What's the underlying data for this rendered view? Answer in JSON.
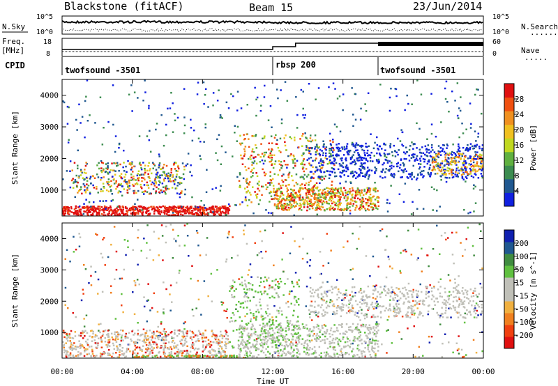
{
  "header": {
    "station": "Blackstone (fitACF)",
    "beam": "Beam 15",
    "date": "23/Jun/2014"
  },
  "noise_panel": {
    "left_label": "N.Sky",
    "right_label": "N.Search",
    "right_label_dots": "........",
    "y_ticks_left": [
      "10^5",
      "10^0"
    ],
    "y_ticks_right": [
      "10^5",
      "10^0"
    ]
  },
  "freq_panel": {
    "label_line1": "Freq.",
    "label_line2": "[MHz]",
    "y_ticks_left": [
      "18",
      "8"
    ],
    "y_ticks_right": [
      "60",
      "0"
    ],
    "right_label": "Nave",
    "right_label_dots": "....."
  },
  "cpid_panel": {
    "label": "CPID",
    "segments": [
      {
        "name": "twofsound -3501",
        "start_hour": 0
      },
      {
        "name": "rbsp 200",
        "start_hour": 12.0
      },
      {
        "name": "twofsound -3501",
        "start_hour": 18.0
      }
    ]
  },
  "colors": {
    "power_scale": [
      "#1020e0",
      "#205890",
      "#3c8c50",
      "#60b040",
      "#c0d820",
      "#f0c020",
      "#f09020",
      "#f05010",
      "#e01010"
    ],
    "velocity_scale": [
      "#e01010",
      "#f04010",
      "#f08020",
      "#f0b040",
      "#c0c0b8",
      "#c0c0b8",
      "#60c040",
      "#408c40",
      "#205890",
      "#1020b0"
    ]
  },
  "chart_data": [
    {
      "type": "heatmap",
      "title": "",
      "ylabel": "Slant Range [km]",
      "xlabel": "",
      "x_ticks": [
        "00:00",
        "04:00",
        "08:00",
        "12:00",
        "16:00",
        "20:00",
        "00:00"
      ],
      "y_ticks": [
        1000,
        2000,
        3000,
        4000
      ],
      "xlim_hours": [
        0,
        24
      ],
      "ylim_km": [
        180,
        4500
      ],
      "colorbar": {
        "label": "Power [dB]",
        "ticks": [
          4,
          8,
          12,
          16,
          20,
          24,
          28
        ]
      }
    },
    {
      "type": "heatmap",
      "title": "",
      "ylabel": "Slant Range [km]",
      "xlabel": "Time UT",
      "x_ticks": [
        "00:00",
        "04:00",
        "08:00",
        "12:00",
        "16:00",
        "20:00",
        "00:00"
      ],
      "y_ticks": [
        1000,
        2000,
        3000,
        4000
      ],
      "xlim_hours": [
        0,
        24
      ],
      "ylim_km": [
        180,
        4500
      ],
      "colorbar": {
        "label": "Velocity [m s^-1]",
        "ticks": [
          200,
          100,
          50,
          15,
          -15,
          -50,
          -100,
          -200
        ]
      }
    }
  ]
}
